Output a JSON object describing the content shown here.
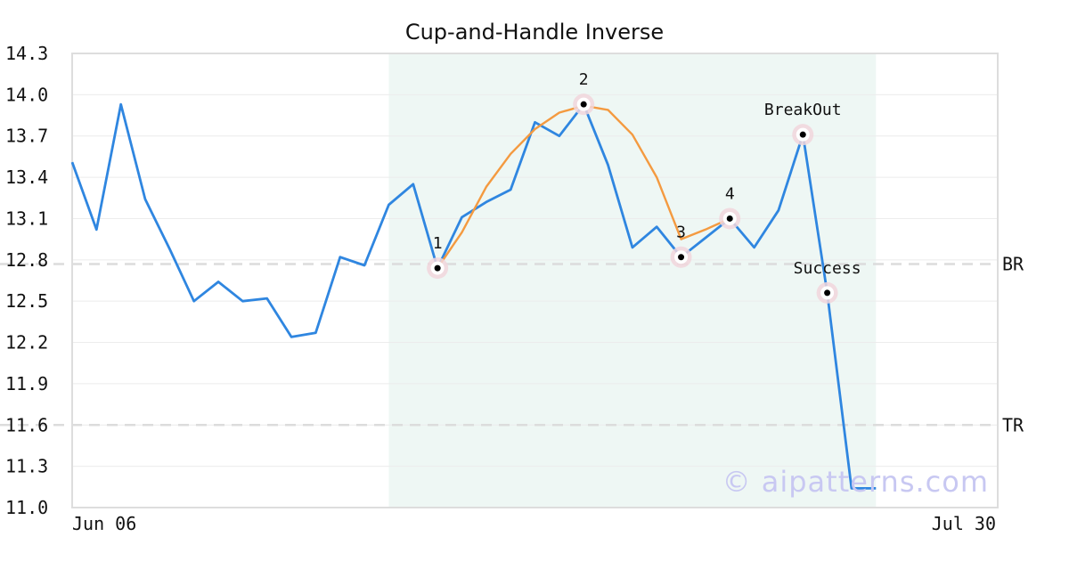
{
  "chart_data": {
    "type": "line",
    "title": "Cup-and-Handle Inverse",
    "xlabel": "",
    "ylabel": "",
    "ylim": [
      11.0,
      14.3
    ],
    "yticks": [
      "14.3",
      "14.0",
      "13.7",
      "13.4",
      "13.1",
      "12.8",
      "12.5",
      "12.2",
      "11.9",
      "11.6",
      "11.3",
      "11.0"
    ],
    "x_start_label": "Jun 06",
    "x_end_label": "Jul 30",
    "x_count": 39,
    "grid": true,
    "pattern_region": {
      "from_index": 13,
      "to_index": 33
    },
    "series": [
      {
        "color": "#2f86e0",
        "values": [
          13.51,
          13.02,
          13.93,
          13.24,
          12.88,
          12.5,
          12.64,
          12.5,
          12.52,
          12.24,
          12.27,
          12.82,
          12.76,
          13.2,
          13.35,
          12.74,
          13.11,
          13.22,
          13.31,
          13.8,
          13.7,
          13.93,
          13.49,
          12.89,
          13.04,
          12.82,
          12.96,
          13.1,
          12.89,
          13.16,
          13.71,
          12.56,
          11.14,
          11.14
        ]
      },
      {
        "color": "#f49a40",
        "x_indexes": [
          15,
          16,
          17,
          18,
          19,
          20,
          21,
          22,
          23,
          24,
          25,
          26,
          27
        ],
        "values": [
          12.74,
          13.0,
          13.33,
          13.57,
          13.75,
          13.87,
          13.92,
          13.89,
          13.71,
          13.4,
          12.95,
          13.02,
          13.1
        ]
      }
    ],
    "points": [
      {
        "label": "1",
        "x_index": 15,
        "value": 12.74
      },
      {
        "label": "2",
        "x_index": 21,
        "value": 13.93
      },
      {
        "label": "3",
        "x_index": 25,
        "value": 12.82
      },
      {
        "label": "4",
        "x_index": 27,
        "value": 13.1
      },
      {
        "label": "BreakOut",
        "x_index": 30,
        "value": 13.71
      },
      {
        "label": "Success",
        "x_index": 31,
        "value": 12.56
      }
    ],
    "hlines": [
      {
        "label": "BR",
        "value": 12.77
      },
      {
        "label": "TR",
        "value": 11.6
      }
    ]
  },
  "watermark": "© aipatterns.com"
}
